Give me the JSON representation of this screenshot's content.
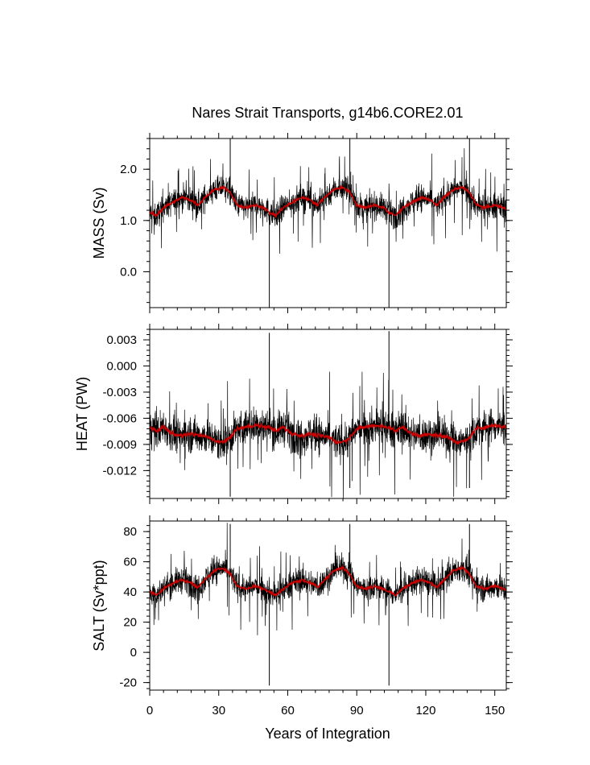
{
  "title": "Nares Strait Transports, g14b6.CORE2.01",
  "xlabel": "Years of Integration",
  "colors": {
    "raw": "#000000",
    "smooth": "#cc0000",
    "frame": "#000000",
    "background": "#ffffff"
  },
  "chart_data": [
    {
      "type": "line",
      "ylabel": "MASS (Sv)",
      "xlim": [
        0,
        155
      ],
      "ylim": [
        -0.7,
        2.6
      ],
      "xticks": [
        "0",
        "30",
        "60",
        "90",
        "120",
        "150"
      ],
      "yticks": [
        "0.0",
        "1.0",
        "2.0"
      ],
      "grid": false,
      "series": [
        {
          "role": "monthly",
          "cycle_years": 52,
          "mean_cycle": [
            [
              0,
              1.15
            ],
            [
              3,
              1.1
            ],
            [
              6,
              1.25
            ],
            [
              10,
              1.35
            ],
            [
              14,
              1.45
            ],
            [
              18,
              1.4
            ],
            [
              21,
              1.3
            ],
            [
              24,
              1.45
            ],
            [
              28,
              1.6
            ],
            [
              32,
              1.65
            ],
            [
              35,
              1.55
            ],
            [
              38,
              1.3
            ],
            [
              42,
              1.25
            ],
            [
              46,
              1.3
            ],
            [
              50,
              1.25
            ],
            [
              52,
              1.15
            ]
          ],
          "spread": 0.55,
          "spikes": [
            [
              35,
              2.6
            ],
            [
              52,
              -0.7
            ],
            [
              87,
              2.6
            ],
            [
              104,
              -0.7
            ],
            [
              139,
              2.6
            ]
          ]
        },
        {
          "role": "smoothed",
          "cycle_years": 52,
          "mean_cycle": [
            [
              0,
              1.15
            ],
            [
              3,
              1.1
            ],
            [
              6,
              1.25
            ],
            [
              10,
              1.35
            ],
            [
              14,
              1.45
            ],
            [
              18,
              1.4
            ],
            [
              21,
              1.3
            ],
            [
              24,
              1.45
            ],
            [
              28,
              1.6
            ],
            [
              32,
              1.65
            ],
            [
              35,
              1.55
            ],
            [
              38,
              1.3
            ],
            [
              42,
              1.25
            ],
            [
              46,
              1.3
            ],
            [
              50,
              1.25
            ],
            [
              52,
              1.15
            ]
          ]
        }
      ]
    },
    {
      "type": "line",
      "ylabel": "HEAT (PW)",
      "xlim": [
        0,
        155
      ],
      "ylim": [
        -0.0152,
        0.0042
      ],
      "xticks": [
        "0",
        "30",
        "60",
        "90",
        "120",
        "150"
      ],
      "yticks": [
        "0.003",
        "0.000",
        "-0.003",
        "-0.006",
        "-0.009",
        "-0.012"
      ],
      "grid": false,
      "series": [
        {
          "role": "monthly",
          "cycle_years": 52,
          "mean_cycle": [
            [
              0,
              -0.007
            ],
            [
              3,
              -0.0075
            ],
            [
              6,
              -0.007
            ],
            [
              10,
              -0.0078
            ],
            [
              14,
              -0.008
            ],
            [
              18,
              -0.0078
            ],
            [
              22,
              -0.008
            ],
            [
              26,
              -0.0082
            ],
            [
              30,
              -0.0088
            ],
            [
              34,
              -0.0085
            ],
            [
              38,
              -0.0072
            ],
            [
              42,
              -0.007
            ],
            [
              46,
              -0.0068
            ],
            [
              50,
              -0.007
            ],
            [
              52,
              -0.007
            ]
          ],
          "spread": 0.0045,
          "spikes": [
            [
              35,
              -0.015
            ],
            [
              52,
              0.0038
            ],
            [
              87,
              -0.014
            ],
            [
              104,
              0.004
            ],
            [
              139,
              -0.014
            ]
          ]
        },
        {
          "role": "smoothed",
          "cycle_years": 52,
          "mean_cycle": [
            [
              0,
              -0.007
            ],
            [
              3,
              -0.0075
            ],
            [
              6,
              -0.007
            ],
            [
              10,
              -0.0078
            ],
            [
              14,
              -0.008
            ],
            [
              18,
              -0.0078
            ],
            [
              22,
              -0.008
            ],
            [
              26,
              -0.0082
            ],
            [
              30,
              -0.0088
            ],
            [
              34,
              -0.0085
            ],
            [
              38,
              -0.0072
            ],
            [
              42,
              -0.007
            ],
            [
              46,
              -0.0068
            ],
            [
              50,
              -0.007
            ],
            [
              52,
              -0.007
            ]
          ]
        }
      ]
    },
    {
      "type": "line",
      "ylabel": "SALT (Sv*ppt)",
      "xlim": [
        0,
        155
      ],
      "ylim": [
        -25,
        87
      ],
      "xticks": [
        "0",
        "30",
        "60",
        "90",
        "120",
        "150"
      ],
      "yticks": [
        "80",
        "60",
        "40",
        "20",
        "0",
        "-20"
      ],
      "grid": false,
      "series": [
        {
          "role": "monthly",
          "cycle_years": 52,
          "mean_cycle": [
            [
              0,
              40
            ],
            [
              3,
              38
            ],
            [
              6,
              42
            ],
            [
              10,
              46
            ],
            [
              14,
              48
            ],
            [
              18,
              46
            ],
            [
              21,
              43
            ],
            [
              24,
              48
            ],
            [
              28,
              54
            ],
            [
              32,
              56
            ],
            [
              35,
              52
            ],
            [
              38,
              44
            ],
            [
              42,
              42
            ],
            [
              46,
              44
            ],
            [
              50,
              42
            ],
            [
              52,
              40
            ]
          ],
          "spread": 19,
          "spikes": [
            [
              35,
              85
            ],
            [
              52,
              -22
            ],
            [
              87,
              85
            ],
            [
              104,
              -22
            ],
            [
              139,
              85
            ]
          ]
        },
        {
          "role": "smoothed",
          "cycle_years": 52,
          "mean_cycle": [
            [
              0,
              40
            ],
            [
              3,
              38
            ],
            [
              6,
              42
            ],
            [
              10,
              46
            ],
            [
              14,
              48
            ],
            [
              18,
              46
            ],
            [
              21,
              43
            ],
            [
              24,
              48
            ],
            [
              28,
              54
            ],
            [
              32,
              56
            ],
            [
              35,
              52
            ],
            [
              38,
              44
            ],
            [
              42,
              42
            ],
            [
              46,
              44
            ],
            [
              50,
              42
            ],
            [
              52,
              40
            ]
          ]
        }
      ]
    }
  ]
}
